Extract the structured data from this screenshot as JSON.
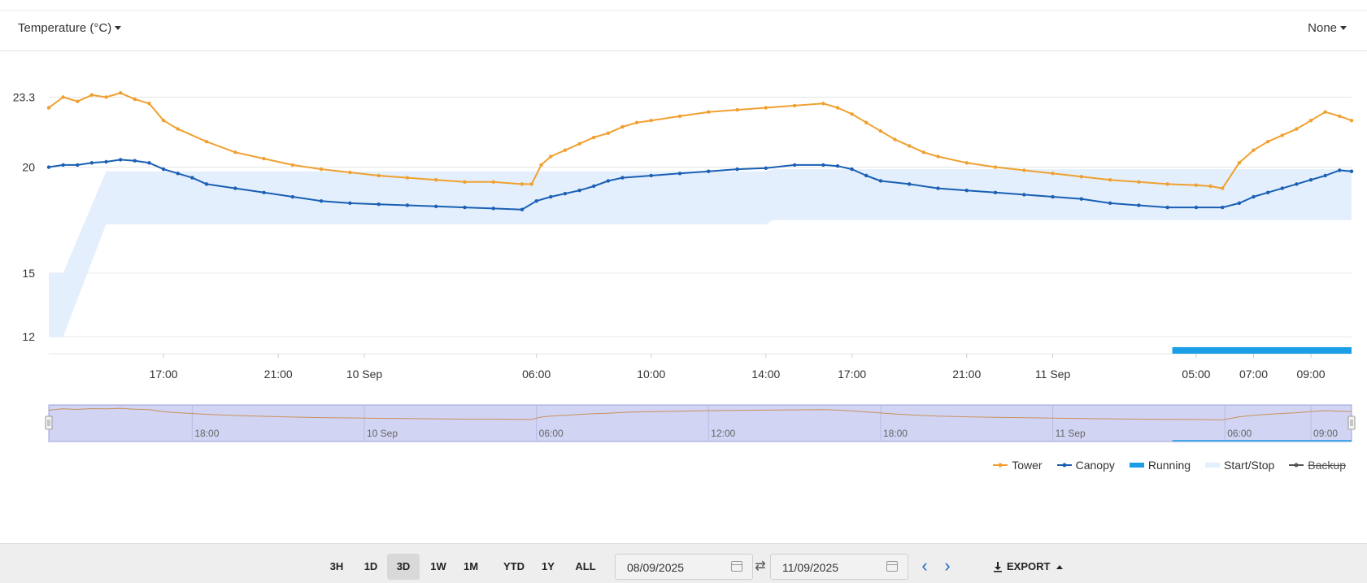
{
  "header": {
    "metric_label": "Temperature (°C)",
    "compare_label": "None"
  },
  "chart_data": {
    "type": "line",
    "x_start": "2025-09-09T13:00",
    "x_end": "2025-09-11T10:25",
    "ylim": [
      11.2,
      24.2
    ],
    "y_ticks": [
      {
        "v": 12,
        "label": "12"
      },
      {
        "v": 15,
        "label": "15"
      },
      {
        "v": 20,
        "label": "20"
      },
      {
        "v": 23.3,
        "label": "23.3"
      }
    ],
    "x_ticks": [
      {
        "t": "2025-09-09T17:00",
        "label": "17:00"
      },
      {
        "t": "2025-09-09T21:00",
        "label": "21:00"
      },
      {
        "t": "2025-09-10T00:00",
        "label": "10 Sep"
      },
      {
        "t": "2025-09-10T06:00",
        "label": "06:00"
      },
      {
        "t": "2025-09-10T10:00",
        "label": "10:00"
      },
      {
        "t": "2025-09-10T14:00",
        "label": "14:00"
      },
      {
        "t": "2025-09-10T17:00",
        "label": "17:00"
      },
      {
        "t": "2025-09-10T21:00",
        "label": "21:00"
      },
      {
        "t": "2025-09-11T00:00",
        "label": "11 Sep"
      },
      {
        "t": "2025-09-11T05:00",
        "label": "05:00"
      },
      {
        "t": "2025-09-11T07:00",
        "label": "07:00"
      },
      {
        "t": "2025-09-11T09:00",
        "label": "09:00"
      }
    ],
    "series": [
      {
        "name": "Tower",
        "color": "#f0a030",
        "points": [
          [
            "2025-09-09T13:00",
            22.8
          ],
          [
            "2025-09-09T13:30",
            23.3
          ],
          [
            "2025-09-09T14:00",
            23.1
          ],
          [
            "2025-09-09T14:30",
            23.4
          ],
          [
            "2025-09-09T15:00",
            23.3
          ],
          [
            "2025-09-09T15:30",
            23.5
          ],
          [
            "2025-09-09T16:00",
            23.2
          ],
          [
            "2025-09-09T16:30",
            23.0
          ],
          [
            "2025-09-09T17:00",
            22.2
          ],
          [
            "2025-09-09T17:30",
            21.8
          ],
          [
            "2025-09-09T18:30",
            21.2
          ],
          [
            "2025-09-09T19:30",
            20.7
          ],
          [
            "2025-09-09T20:30",
            20.4
          ],
          [
            "2025-09-09T21:30",
            20.1
          ],
          [
            "2025-09-09T22:30",
            19.9
          ],
          [
            "2025-09-09T23:30",
            19.75
          ],
          [
            "2025-09-10T00:30",
            19.6
          ],
          [
            "2025-09-10T01:30",
            19.5
          ],
          [
            "2025-09-10T02:30",
            19.4
          ],
          [
            "2025-09-10T03:30",
            19.3
          ],
          [
            "2025-09-10T04:30",
            19.3
          ],
          [
            "2025-09-10T05:30",
            19.2
          ],
          [
            "2025-09-10T05:50",
            19.2
          ],
          [
            "2025-09-10T06:10",
            20.1
          ],
          [
            "2025-09-10T06:30",
            20.5
          ],
          [
            "2025-09-10T07:00",
            20.8
          ],
          [
            "2025-09-10T07:30",
            21.1
          ],
          [
            "2025-09-10T08:00",
            21.4
          ],
          [
            "2025-09-10T08:30",
            21.6
          ],
          [
            "2025-09-10T09:00",
            21.9
          ],
          [
            "2025-09-10T09:30",
            22.1
          ],
          [
            "2025-09-10T10:00",
            22.2
          ],
          [
            "2025-09-10T11:00",
            22.4
          ],
          [
            "2025-09-10T12:00",
            22.6
          ],
          [
            "2025-09-10T13:00",
            22.7
          ],
          [
            "2025-09-10T14:00",
            22.8
          ],
          [
            "2025-09-10T15:00",
            22.9
          ],
          [
            "2025-09-10T16:00",
            23.0
          ],
          [
            "2025-09-10T16:30",
            22.8
          ],
          [
            "2025-09-10T17:00",
            22.5
          ],
          [
            "2025-09-10T17:30",
            22.1
          ],
          [
            "2025-09-10T18:00",
            21.7
          ],
          [
            "2025-09-10T18:30",
            21.3
          ],
          [
            "2025-09-10T19:00",
            21.0
          ],
          [
            "2025-09-10T19:30",
            20.7
          ],
          [
            "2025-09-10T20:00",
            20.5
          ],
          [
            "2025-09-10T21:00",
            20.2
          ],
          [
            "2025-09-10T22:00",
            20.0
          ],
          [
            "2025-09-10T23:00",
            19.85
          ],
          [
            "2025-09-11T00:00",
            19.7
          ],
          [
            "2025-09-11T01:00",
            19.55
          ],
          [
            "2025-09-11T02:00",
            19.4
          ],
          [
            "2025-09-11T03:00",
            19.3
          ],
          [
            "2025-09-11T04:00",
            19.2
          ],
          [
            "2025-09-11T05:00",
            19.15
          ],
          [
            "2025-09-11T05:30",
            19.1
          ],
          [
            "2025-09-11T05:55",
            19.0
          ],
          [
            "2025-09-11T06:30",
            20.2
          ],
          [
            "2025-09-11T07:00",
            20.8
          ],
          [
            "2025-09-11T07:30",
            21.2
          ],
          [
            "2025-09-11T08:00",
            21.5
          ],
          [
            "2025-09-11T08:30",
            21.8
          ],
          [
            "2025-09-11T09:00",
            22.2
          ],
          [
            "2025-09-11T09:30",
            22.6
          ],
          [
            "2025-09-11T10:00",
            22.4
          ],
          [
            "2025-09-11T10:25",
            22.2
          ]
        ]
      },
      {
        "name": "Canopy",
        "color": "#1a5fb4",
        "points": [
          [
            "2025-09-09T13:00",
            20.0
          ],
          [
            "2025-09-09T13:30",
            20.1
          ],
          [
            "2025-09-09T14:00",
            20.1
          ],
          [
            "2025-09-09T14:30",
            20.2
          ],
          [
            "2025-09-09T15:00",
            20.25
          ],
          [
            "2025-09-09T15:30",
            20.35
          ],
          [
            "2025-09-09T16:00",
            20.3
          ],
          [
            "2025-09-09T16:30",
            20.2
          ],
          [
            "2025-09-09T17:00",
            19.9
          ],
          [
            "2025-09-09T17:30",
            19.7
          ],
          [
            "2025-09-09T18:00",
            19.5
          ],
          [
            "2025-09-09T18:30",
            19.2
          ],
          [
            "2025-09-09T19:30",
            19.0
          ],
          [
            "2025-09-09T20:30",
            18.8
          ],
          [
            "2025-09-09T21:30",
            18.6
          ],
          [
            "2025-09-09T22:30",
            18.4
          ],
          [
            "2025-09-09T23:30",
            18.3
          ],
          [
            "2025-09-10T00:30",
            18.25
          ],
          [
            "2025-09-10T01:30",
            18.2
          ],
          [
            "2025-09-10T02:30",
            18.15
          ],
          [
            "2025-09-10T03:30",
            18.1
          ],
          [
            "2025-09-10T04:30",
            18.05
          ],
          [
            "2025-09-10T05:30",
            18.0
          ],
          [
            "2025-09-10T06:00",
            18.4
          ],
          [
            "2025-09-10T06:30",
            18.6
          ],
          [
            "2025-09-10T07:00",
            18.75
          ],
          [
            "2025-09-10T07:30",
            18.9
          ],
          [
            "2025-09-10T08:00",
            19.1
          ],
          [
            "2025-09-10T08:30",
            19.35
          ],
          [
            "2025-09-10T09:00",
            19.5
          ],
          [
            "2025-09-10T10:00",
            19.6
          ],
          [
            "2025-09-10T11:00",
            19.7
          ],
          [
            "2025-09-10T12:00",
            19.8
          ],
          [
            "2025-09-10T13:00",
            19.9
          ],
          [
            "2025-09-10T14:00",
            19.95
          ],
          [
            "2025-09-10T15:00",
            20.1
          ],
          [
            "2025-09-10T16:00",
            20.1
          ],
          [
            "2025-09-10T16:30",
            20.05
          ],
          [
            "2025-09-10T17:00",
            19.9
          ],
          [
            "2025-09-10T17:30",
            19.6
          ],
          [
            "2025-09-10T18:00",
            19.35
          ],
          [
            "2025-09-10T19:00",
            19.2
          ],
          [
            "2025-09-10T20:00",
            19.0
          ],
          [
            "2025-09-10T21:00",
            18.9
          ],
          [
            "2025-09-10T22:00",
            18.8
          ],
          [
            "2025-09-10T23:00",
            18.7
          ],
          [
            "2025-09-11T00:00",
            18.6
          ],
          [
            "2025-09-11T01:00",
            18.5
          ],
          [
            "2025-09-11T02:00",
            18.3
          ],
          [
            "2025-09-11T03:00",
            18.2
          ],
          [
            "2025-09-11T04:00",
            18.1
          ],
          [
            "2025-09-11T05:00",
            18.1
          ],
          [
            "2025-09-11T05:55",
            18.1
          ],
          [
            "2025-09-11T06:30",
            18.3
          ],
          [
            "2025-09-11T07:00",
            18.6
          ],
          [
            "2025-09-11T07:30",
            18.8
          ],
          [
            "2025-09-11T08:00",
            19.0
          ],
          [
            "2025-09-11T08:30",
            19.2
          ],
          [
            "2025-09-11T09:00",
            19.4
          ],
          [
            "2025-09-11T09:30",
            19.6
          ],
          [
            "2025-09-11T10:00",
            19.85
          ],
          [
            "2025-09-11T10:25",
            19.8
          ]
        ]
      }
    ],
    "band": {
      "name": "Start/Stop",
      "color": "#e3effc",
      "points": [
        [
          "2025-09-09T13:00",
          15,
          12
        ],
        [
          "2025-09-09T13:30",
          15,
          12
        ],
        [
          "2025-09-09T15:00",
          19.8,
          17.3
        ],
        [
          "2025-09-10T14:00",
          19.8,
          17.3
        ],
        [
          "2025-09-10T14:15",
          19.9,
          17.5
        ],
        [
          "2025-09-11T10:25",
          19.9,
          17.5
        ]
      ]
    },
    "running": {
      "name": "Running",
      "color": "#1a9fe6",
      "start": "2025-09-11T04:10",
      "end": "2025-09-11T10:30"
    },
    "navigator_ticks": [
      {
        "t": "2025-09-09T18:00",
        "label": "18:00"
      },
      {
        "t": "2025-09-10T00:00",
        "label": "10 Sep"
      },
      {
        "t": "2025-09-10T06:00",
        "label": "06:00"
      },
      {
        "t": "2025-09-10T12:00",
        "label": "12:00"
      },
      {
        "t": "2025-09-10T18:00",
        "label": "18:00"
      },
      {
        "t": "2025-09-11T00:00",
        "label": "11 Sep"
      },
      {
        "t": "2025-09-11T06:00",
        "label": "06:00"
      },
      {
        "t": "2025-09-11T09:00",
        "label": "09:00"
      }
    ],
    "grid": true,
    "legend_position": "bottom-right"
  },
  "legend": {
    "items": [
      {
        "label": "Tower",
        "color": "#f0a030",
        "kind": "line"
      },
      {
        "label": "Canopy",
        "color": "#1a5fb4",
        "kind": "line"
      },
      {
        "label": "Running",
        "color": "#1a9fe6",
        "kind": "bar"
      },
      {
        "label": "Start/Stop",
        "color": "#e3effc",
        "kind": "area"
      },
      {
        "label": "Backup",
        "color": "#555555",
        "kind": "line",
        "disabled": true
      }
    ]
  },
  "toolbar": {
    "ranges": [
      "3H",
      "1D",
      "3D",
      "1W",
      "1M",
      "YTD",
      "1Y",
      "ALL"
    ],
    "active_range": "3D",
    "from_date": "08/09/2025",
    "to_date": "11/09/2025",
    "export_label": "EXPORT"
  }
}
